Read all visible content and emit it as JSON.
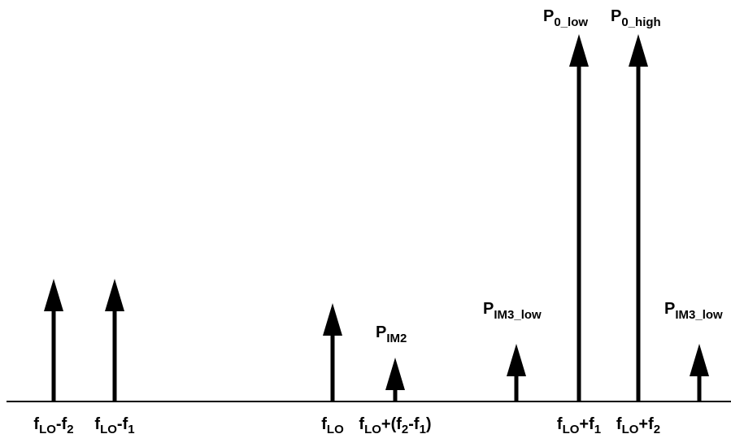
{
  "diagram": {
    "colors": {
      "stroke": "#000000",
      "background": "#ffffff"
    },
    "tones": [
      {
        "id": "lo-minus-f2",
        "rel_height": 0.333,
        "x_label": {
          "main": "f",
          "sub": "LO",
          "suffix": "-f",
          "sub2": "2",
          "tail": ""
        },
        "p_label": null
      },
      {
        "id": "lo-minus-f1",
        "rel_height": 0.333,
        "x_label": {
          "main": "f",
          "sub": "LO",
          "suffix": "-f",
          "sub2": "1",
          "tail": ""
        },
        "p_label": null
      },
      {
        "id": "lo",
        "rel_height": 0.267,
        "x_label": {
          "main": "f",
          "sub": "LO",
          "suffix": "",
          "sub2": "",
          "tail": ""
        },
        "p_label": null
      },
      {
        "id": "lo-plus-f2-minus-f1",
        "rel_height": 0.12,
        "x_label": {
          "main": "f",
          "sub": "LO",
          "suffix": "+(f",
          "sub2": "2",
          "mid": "-f",
          "sub3": "1",
          "tail": ")"
        },
        "p_label": {
          "main": "P",
          "sub": "IM2"
        }
      },
      {
        "id": "im3-low-left",
        "rel_height": 0.157,
        "x_label": null,
        "p_label": {
          "main": "P",
          "sub": "IM3_low"
        }
      },
      {
        "id": "lo-plus-f1",
        "rel_height": 1.0,
        "x_label": {
          "main": "f",
          "sub": "LO",
          "suffix": "+f",
          "sub2": "1",
          "tail": ""
        },
        "p_label": {
          "main": "P",
          "sub": "0_low"
        }
      },
      {
        "id": "lo-plus-f2",
        "rel_height": 1.0,
        "x_label": {
          "main": "f",
          "sub": "LO",
          "suffix": "+f",
          "sub2": "2",
          "tail": ""
        },
        "p_label": {
          "main": "P",
          "sub": "0_high"
        }
      },
      {
        "id": "im3-low-right",
        "rel_height": 0.157,
        "x_label": null,
        "p_label": {
          "main": "P",
          "sub": "IM3_low"
        }
      }
    ]
  }
}
